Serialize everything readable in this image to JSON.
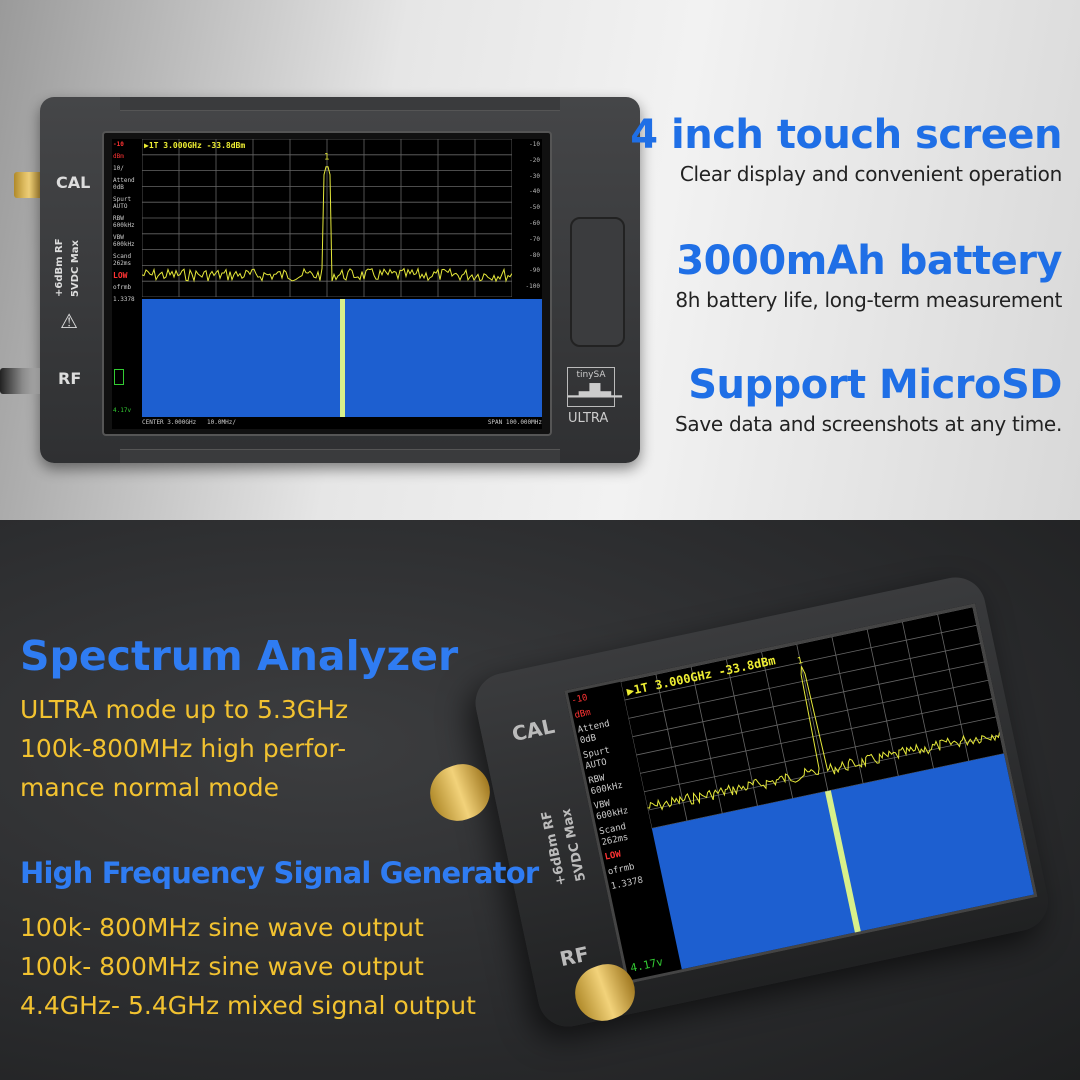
{
  "device_screen": {
    "marker_header": "▶1T  3.000GHz -33.8dBm",
    "ref_level": "-10",
    "unit": "dBm",
    "scale": "10/",
    "side_labels": [
      "Attend 0dB",
      "Spurt AUTO",
      "RBW 600kHz",
      "VBW 600kHz",
      "Scand 262ms"
    ],
    "mode": "LOW",
    "offset_label": "ofrmb",
    "offset_value": "1.3378",
    "battery_voltage": "4.17v",
    "y_ticks": [
      "-10",
      "-20",
      "-30",
      "-40",
      "-50",
      "-60",
      "-70",
      "-80",
      "-90",
      "-100"
    ],
    "center": "CENTER 3.000GHz",
    "per_div": "10.0MHz/",
    "span": "SPAN 100.000MHz",
    "marker_number": "1"
  },
  "device_labels": {
    "cal": "CAL",
    "rf": "RF",
    "spec1": "+6dBm RF",
    "spec2": "5VDC Max",
    "brand": "tinySA",
    "model": "ULTRA"
  },
  "features": [
    {
      "title": "4 inch touch screen",
      "desc": "Clear display and convenient operation"
    },
    {
      "title": "3000mAh battery",
      "desc": "8h battery life, long-term measurement"
    },
    {
      "title": "Support MicroSD",
      "desc": "Save data and screenshots at any time."
    }
  ],
  "spectrum": {
    "title": "Spectrum Analyzer",
    "lines": [
      "ULTRA mode up to 5.3GHz",
      "100k-800MHz high perfor-",
      "mance normal mode"
    ]
  },
  "generator": {
    "title": "High Frequency Signal Generator",
    "lines": [
      "100k- 800MHz sine wave output",
      "100k- 800MHz sine wave output",
      "4.4GHz- 5.4GHz mixed signal output"
    ]
  },
  "colors": {
    "title_blue": "#1f6fe6",
    "text_yellow": "#f2c230",
    "trace": "#e5e83a",
    "waterfall": "#1d5fd0"
  }
}
